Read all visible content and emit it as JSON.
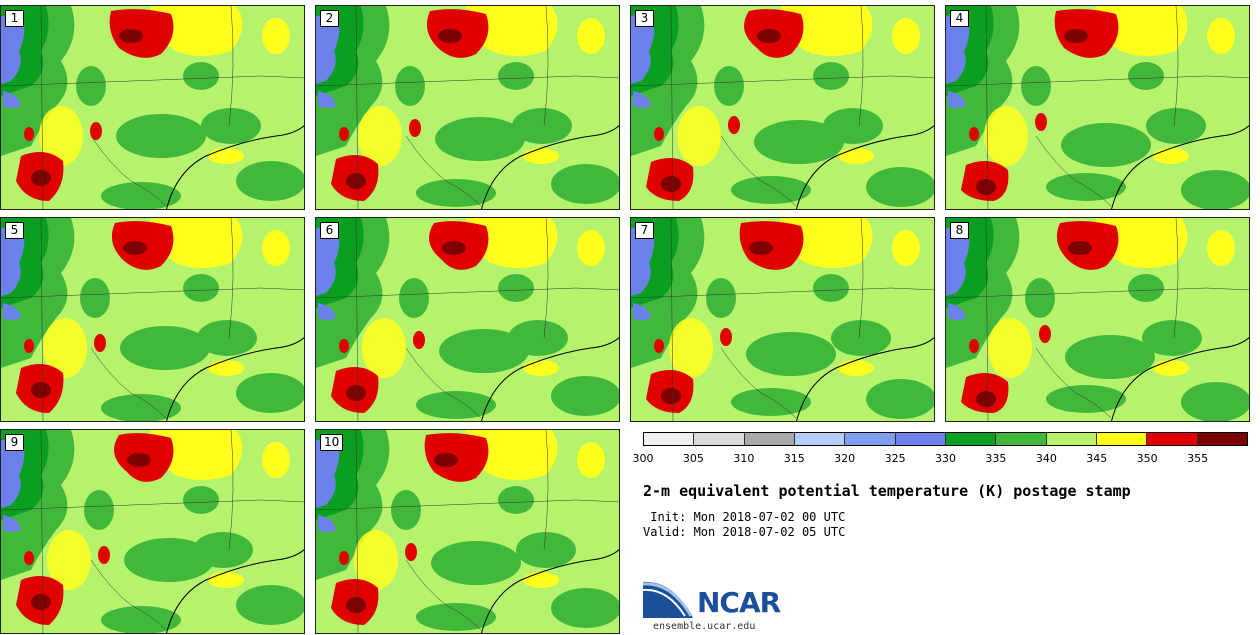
{
  "panels": [
    {
      "label": "1"
    },
    {
      "label": "2"
    },
    {
      "label": "3"
    },
    {
      "label": "4"
    },
    {
      "label": "5"
    },
    {
      "label": "6"
    },
    {
      "label": "7"
    },
    {
      "label": "8"
    },
    {
      "label": "9"
    },
    {
      "label": "10"
    }
  ],
  "colorbar": {
    "colors": [
      "#efefef",
      "#d9d9d9",
      "#a9a9a9",
      "#b3cdf6",
      "#7f9ef2",
      "#6a82ea",
      "#0a9f1e",
      "#41b83c",
      "#b6f36d",
      "#ffff1e",
      "#e10000",
      "#7d0000"
    ],
    "tick_labels": [
      "300",
      "305",
      "310",
      "315",
      "320",
      "325",
      "330",
      "335",
      "340",
      "345",
      "350",
      "355"
    ]
  },
  "title": "2-m equivalent potential temperature (K) postage stamp",
  "init_line": " Init: Mon 2018-07-02 00 UTC",
  "valid_line": "Valid: Mon 2018-07-02 05 UTC",
  "logo": {
    "text": "NCAR",
    "site": "ensemble.ucar.edu"
  },
  "map_colors": {
    "background": "#b6f36d",
    "dark_green": "#0a9f1e",
    "green": "#41b83c",
    "yellow": "#ffff1e",
    "red": "#e10000",
    "dark_red": "#7d0000",
    "blue": "#6a82ea",
    "light_blue": "#b3cdf6"
  }
}
